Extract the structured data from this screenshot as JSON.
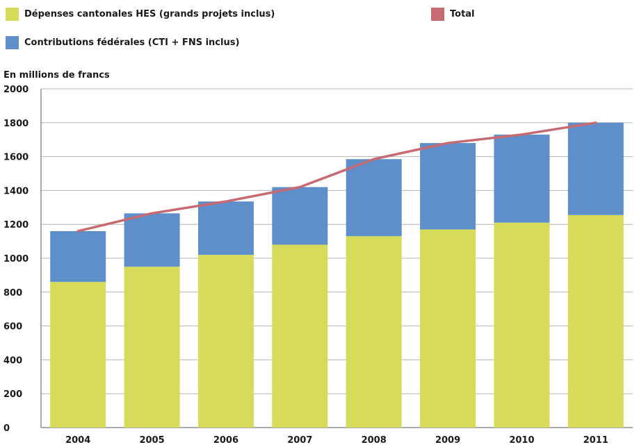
{
  "chart_data": {
    "type": "bar",
    "stacked": true,
    "unit_label": "En millions de francs",
    "categories": [
      "2004",
      "2005",
      "2006",
      "2007",
      "2008",
      "2009",
      "2010",
      "2011"
    ],
    "series": [
      {
        "name": "Dépenses cantonales HES (grands projets inclus)",
        "kind": "bar",
        "color": "#d6db59",
        "values": [
          860,
          950,
          1020,
          1080,
          1130,
          1170,
          1210,
          1255
        ]
      },
      {
        "name": "Contributions fédérales (CTI + FNS inclus)",
        "kind": "bar",
        "color": "#5f8fcb",
        "values": [
          300,
          315,
          315,
          340,
          455,
          510,
          520,
          545
        ]
      },
      {
        "name": "Total",
        "kind": "line",
        "color": "#c76a72",
        "values": [
          1160,
          1265,
          1335,
          1420,
          1585,
          1680,
          1730,
          1800
        ]
      }
    ],
    "ylim": [
      0,
      2000
    ],
    "yticks": [
      0,
      200,
      400,
      600,
      800,
      1000,
      1200,
      1400,
      1600,
      1800,
      2000
    ],
    "grid": true,
    "legend_position": "top"
  }
}
